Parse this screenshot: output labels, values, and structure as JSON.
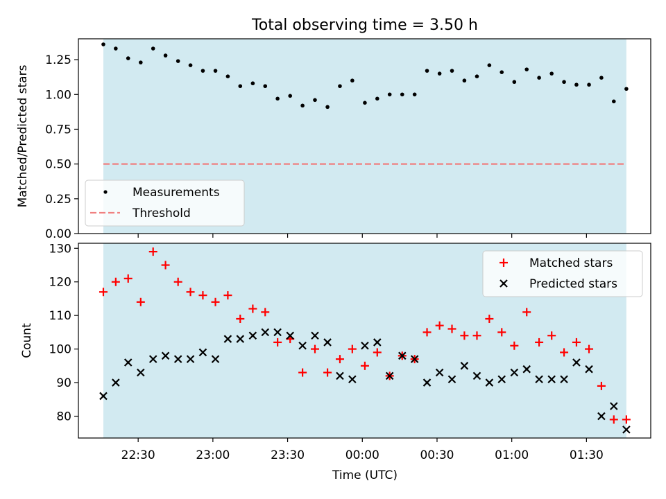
{
  "chart_data": [
    {
      "type": "scatter",
      "title": "Total observing time = 3.50 h",
      "ylabel": "Matched/Predicted stars",
      "xlabel": "",
      "x_unit": "hours (UTC, continuing past midnight)",
      "xlim": [
        22.1,
        25.93
      ],
      "ylim": [
        0,
        1.4
      ],
      "yticks": [
        0.0,
        0.25,
        0.5,
        0.75,
        1.0,
        1.25
      ],
      "ytick_labels": [
        "0.00",
        "0.25",
        "0.50",
        "0.75",
        "1.00",
        "1.25"
      ],
      "observing_window": [
        22.267,
        25.767
      ],
      "window_color": "#add8e6",
      "threshold": {
        "name": "Threshold",
        "value": 0.5,
        "color": "#f08080"
      },
      "legend_position": "lower-left",
      "series": [
        {
          "name": "Measurements",
          "color": "#000000",
          "marker": "dot",
          "x": [
            22.267,
            22.35,
            22.433,
            22.517,
            22.6,
            22.683,
            22.767,
            22.85,
            22.933,
            23.017,
            23.1,
            23.183,
            23.267,
            23.35,
            23.433,
            23.517,
            23.6,
            23.683,
            23.767,
            23.85,
            23.933,
            24.017,
            24.1,
            24.183,
            24.267,
            24.35,
            24.433,
            24.517,
            24.6,
            24.683,
            24.767,
            24.85,
            24.933,
            25.017,
            25.1,
            25.183,
            25.267,
            25.35,
            25.433,
            25.517,
            25.6,
            25.683,
            25.767
          ],
          "y": [
            1.36,
            1.33,
            1.26,
            1.23,
            1.33,
            1.28,
            1.24,
            1.21,
            1.17,
            1.17,
            1.13,
            1.06,
            1.08,
            1.06,
            0.97,
            0.99,
            0.92,
            0.96,
            0.91,
            1.06,
            1.1,
            0.94,
            0.97,
            1.0,
            1.0,
            1.0,
            1.17,
            1.15,
            1.17,
            1.1,
            1.13,
            1.21,
            1.16,
            1.09,
            1.18,
            1.12,
            1.15,
            1.09,
            1.07,
            1.07,
            1.12,
            0.95,
            1.04
          ]
        }
      ]
    },
    {
      "type": "scatter",
      "title": "",
      "ylabel": "Count",
      "xlabel": "Time (UTC)",
      "xlim": [
        22.1,
        25.93
      ],
      "ylim": [
        73.5,
        131.5
      ],
      "yticks": [
        80,
        90,
        100,
        110,
        120,
        130
      ],
      "ytick_labels": [
        "80",
        "90",
        "100",
        "110",
        "120",
        "130"
      ],
      "xticks": [
        22.5,
        23.0,
        23.5,
        24.0,
        24.5,
        25.0,
        25.5
      ],
      "xtick_labels": [
        "22:30",
        "23:00",
        "23:30",
        "00:00",
        "00:30",
        "01:00",
        "01:30"
      ],
      "observing_window": [
        22.267,
        25.767
      ],
      "window_color": "#add8e6",
      "legend_position": "top-right",
      "series": [
        {
          "name": "Matched stars",
          "color": "#ff0000",
          "marker": "plus",
          "x": [
            22.267,
            22.35,
            22.433,
            22.517,
            22.6,
            22.683,
            22.767,
            22.85,
            22.933,
            23.017,
            23.1,
            23.183,
            23.267,
            23.35,
            23.433,
            23.517,
            23.6,
            23.683,
            23.767,
            23.85,
            23.933,
            24.017,
            24.1,
            24.183,
            24.267,
            24.35,
            24.433,
            24.517,
            24.6,
            24.683,
            24.767,
            24.85,
            24.933,
            25.017,
            25.1,
            25.183,
            25.267,
            25.35,
            25.433,
            25.517,
            25.6,
            25.683,
            25.767
          ],
          "y": [
            117,
            120,
            121,
            114,
            129,
            125,
            120,
            117,
            116,
            114,
            116,
            109,
            112,
            111,
            102,
            103,
            93,
            100,
            93,
            97,
            100,
            95,
            99,
            92,
            98,
            97,
            105,
            107,
            106,
            104,
            104,
            109,
            105,
            101,
            111,
            102,
            104,
            99,
            102,
            100,
            89,
            79,
            79
          ]
        },
        {
          "name": "Predicted stars",
          "color": "#000000",
          "marker": "x",
          "x": [
            22.267,
            22.35,
            22.433,
            22.517,
            22.6,
            22.683,
            22.767,
            22.85,
            22.933,
            23.017,
            23.1,
            23.183,
            23.267,
            23.35,
            23.433,
            23.517,
            23.6,
            23.683,
            23.767,
            23.85,
            23.933,
            24.017,
            24.1,
            24.183,
            24.267,
            24.35,
            24.433,
            24.517,
            24.6,
            24.683,
            24.767,
            24.85,
            24.933,
            25.017,
            25.1,
            25.183,
            25.267,
            25.35,
            25.433,
            25.517,
            25.6,
            25.683,
            25.767
          ],
          "y": [
            86,
            90,
            96,
            93,
            97,
            98,
            97,
            97,
            99,
            97,
            103,
            103,
            104,
            105,
            105,
            104,
            101,
            104,
            102,
            92,
            91,
            101,
            102,
            92,
            98,
            97,
            90,
            93,
            91,
            95,
            92,
            90,
            91,
            93,
            94,
            91,
            91,
            91,
            96,
            94,
            80,
            83,
            76
          ]
        }
      ]
    }
  ]
}
